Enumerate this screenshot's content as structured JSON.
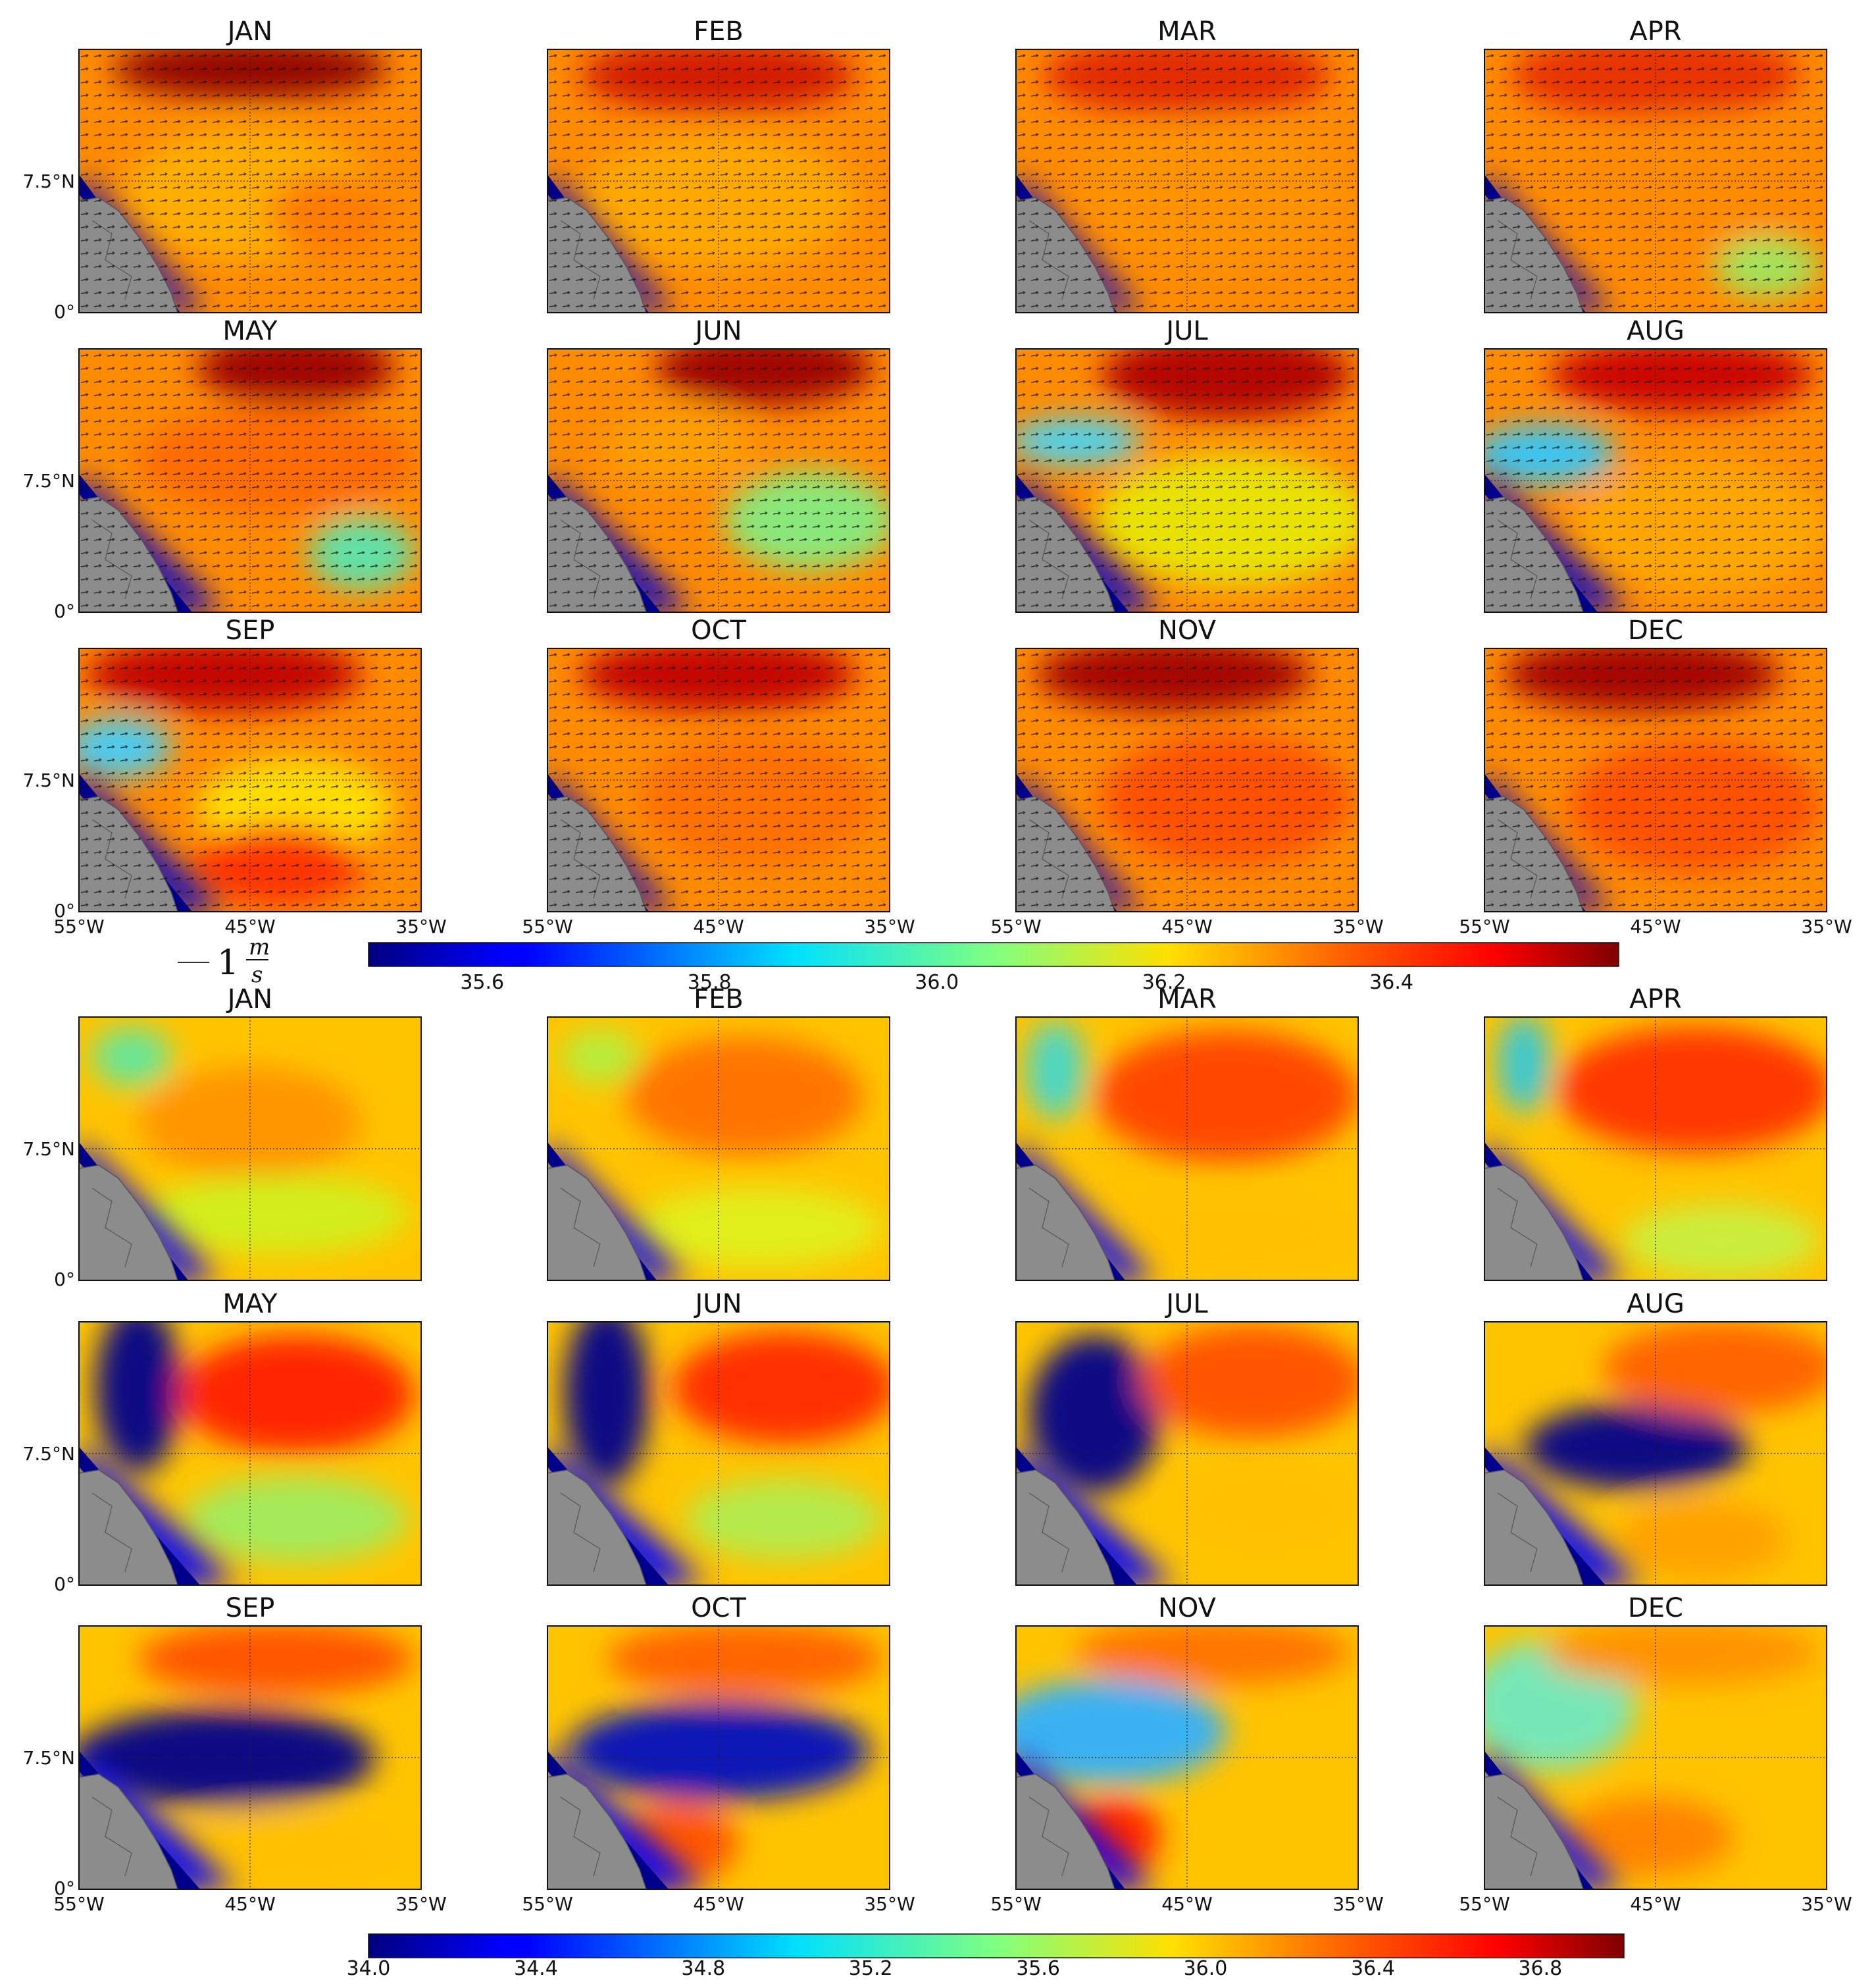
{
  "chart_data": [
    {
      "type": "heatmap",
      "panel_group": "top",
      "description_of_fields": "surface salinity with current vectors",
      "panels": [
        "JAN",
        "FEB",
        "MAR",
        "APR",
        "MAY",
        "JUN",
        "JUL",
        "AUG",
        "SEP",
        "OCT",
        "NOV",
        "DEC"
      ],
      "xticks": [
        "55°W",
        "45°W",
        "35°W"
      ],
      "yticks": [
        "7.5°N",
        "0°"
      ],
      "xlim": [
        -55,
        -35
      ],
      "ylim": [
        0,
        15
      ],
      "grid": true,
      "vector_key": {
        "value": "1",
        "unit_num": "m",
        "unit_den": "s"
      },
      "colorbar": {
        "range": [
          35.5,
          36.6
        ],
        "ticks": [
          "35.6",
          "35.8",
          "36.0",
          "36.2",
          "36.4"
        ]
      }
    },
    {
      "type": "heatmap",
      "panel_group": "bottom",
      "description_of_fields": "surface salinity",
      "panels": [
        "JAN",
        "FEB",
        "MAR",
        "APR",
        "MAY",
        "JUN",
        "JUL",
        "AUG",
        "SEP",
        "OCT",
        "NOV",
        "DEC"
      ],
      "xticks": [
        "55°W",
        "45°W",
        "35°W"
      ],
      "yticks": [
        "7.5°N",
        "0°"
      ],
      "xlim": [
        -55,
        -35
      ],
      "ylim": [
        0,
        15
      ],
      "grid": true,
      "colorbar": {
        "range": [
          34.0,
          37.0
        ],
        "ticks": [
          "34.0",
          "34.4",
          "34.8",
          "35.2",
          "35.6",
          "36.0",
          "36.4",
          "36.8"
        ]
      }
    }
  ],
  "colors": {
    "land": "#8a8a8a",
    "plume": "#00008b",
    "background": "#ffffff"
  }
}
